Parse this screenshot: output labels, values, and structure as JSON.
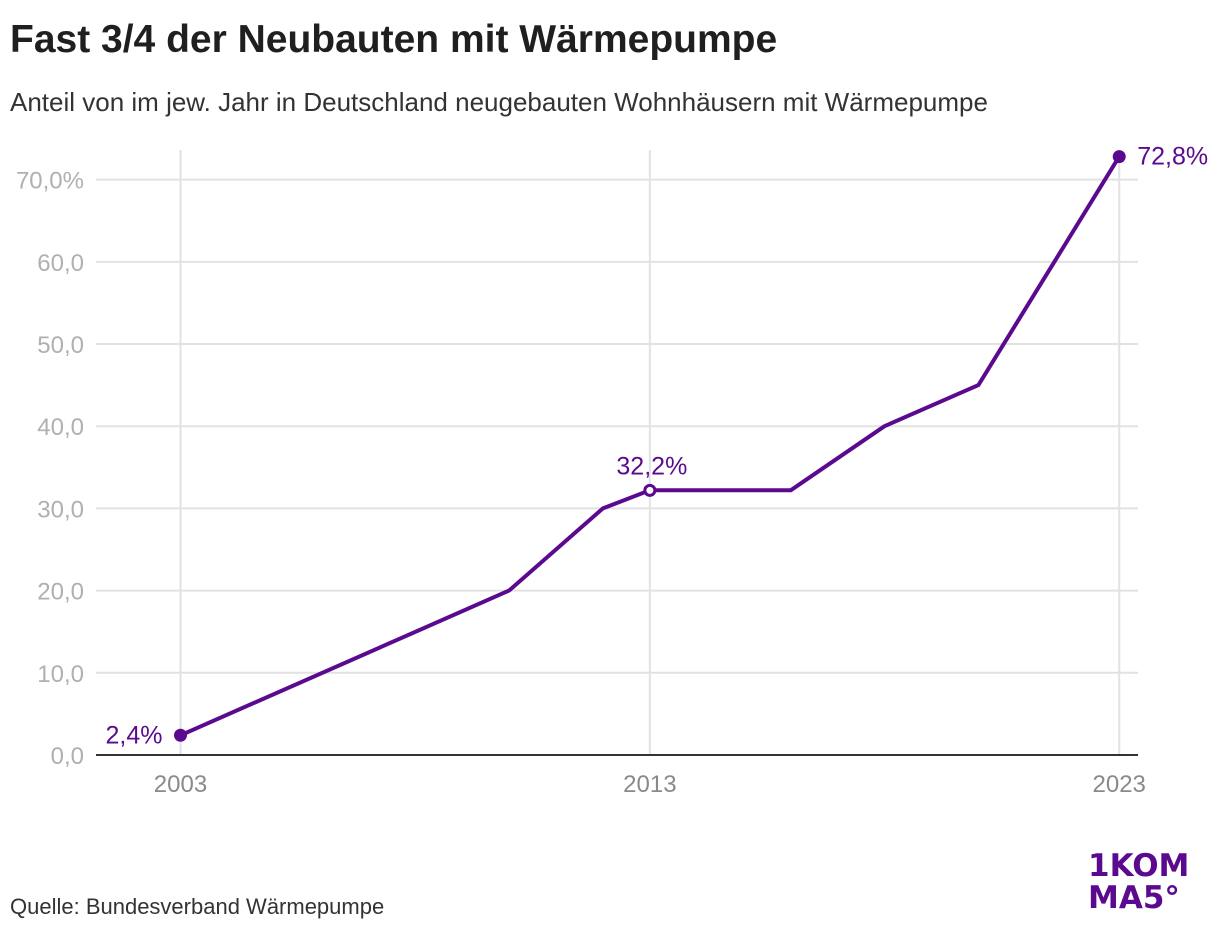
{
  "header": {
    "title": "Fast 3/4 der Neubauten mit Wärmepumpe",
    "subtitle": "Anteil von im jew. Jahr in Deutschland neugebauten Wohnhäusern mit Wärmepumpe"
  },
  "footer": {
    "source": "Quelle: Bundesverband Wärmepumpe",
    "logo_line1": "1KOM",
    "logo_line2": "MA5°"
  },
  "colors": {
    "line": "#5b0a8f",
    "grid": "#e2e2e2",
    "axis": "#333333",
    "tick_label": "#b0b0b0",
    "x_label": "#8a8a8a",
    "logo": "#5b0a8f"
  },
  "chart_data": {
    "type": "line",
    "title": "Fast 3/4 der Neubauten mit Wärmepumpe",
    "subtitle": "Anteil von im jew. Jahr in Deutschland neugebauten Wohnhäusern mit Wärmepumpe",
    "xlabel": "",
    "ylabel": "",
    "x": [
      2003,
      2010,
      2012,
      2013,
      2016,
      2018,
      2020,
      2023
    ],
    "series": [
      {
        "values": [
          2.4,
          20.0,
          30.0,
          32.2,
          32.2,
          40.0,
          45.0,
          72.8
        ]
      }
    ],
    "xlim": [
      2001.2,
      2023.4
    ],
    "ylim": [
      0,
      73
    ],
    "y_ticks": [
      {
        "value": 0,
        "label": "0,0"
      },
      {
        "value": 10,
        "label": "10,0"
      },
      {
        "value": 20,
        "label": "20,0"
      },
      {
        "value": 30,
        "label": "30,0"
      },
      {
        "value": 40,
        "label": "40,0"
      },
      {
        "value": 50,
        "label": "50,0"
      },
      {
        "value": 60,
        "label": "60,0"
      },
      {
        "value": 70,
        "label": "70,0%"
      }
    ],
    "x_ticks": [
      {
        "value": 2003,
        "label": "2003"
      },
      {
        "value": 2013,
        "label": "2013"
      },
      {
        "value": 2023,
        "label": "2023"
      }
    ],
    "annotations": [
      {
        "x": 2003,
        "y": 2.4,
        "label": "2,4%",
        "position": "left",
        "marker": "filled"
      },
      {
        "x": 2013,
        "y": 32.2,
        "label": "32,2%",
        "position": "above",
        "marker": "open"
      },
      {
        "x": 2023,
        "y": 72.8,
        "label": "72,8%",
        "position": "right",
        "marker": "filled"
      }
    ],
    "grid": true,
    "legend": "none"
  }
}
